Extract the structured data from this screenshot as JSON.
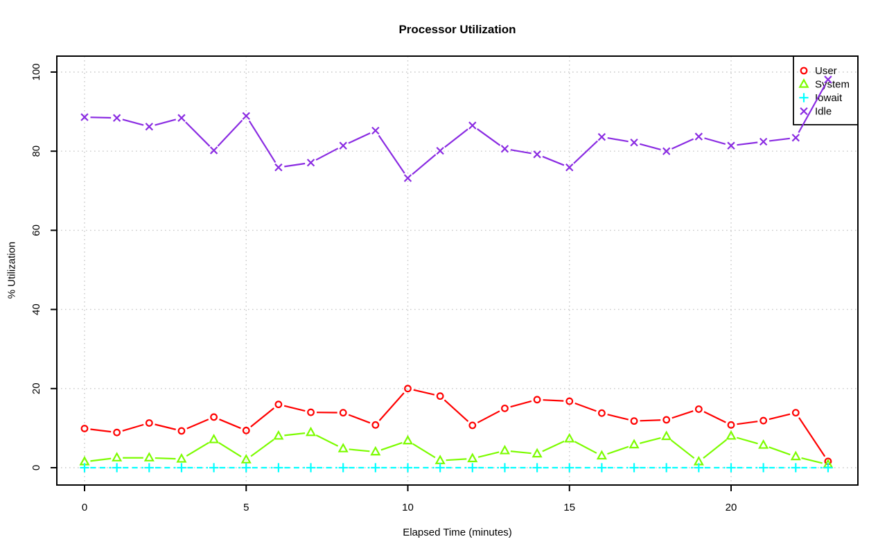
{
  "title": "Processor Utilization",
  "chart_data": {
    "type": "line",
    "title": "Processor Utilization",
    "xlabel": "Elapsed Time (minutes)",
    "ylabel": "% Utilization",
    "x": [
      0,
      1,
      2,
      3,
      4,
      5,
      6,
      7,
      8,
      9,
      10,
      11,
      12,
      13,
      14,
      15,
      16,
      17,
      18,
      19,
      20,
      21,
      22,
      23
    ],
    "x_ticks": [
      0,
      5,
      10,
      15,
      20
    ],
    "y_ticks": [
      0,
      20,
      40,
      60,
      80,
      100
    ],
    "xlim": [
      -0.9,
      23.9
    ],
    "ylim": [
      -4,
      104
    ],
    "grid": true,
    "grid_style": "dotted",
    "legend_position": "top-right",
    "series": [
      {
        "name": "User",
        "color": "#ff0000",
        "marker": "circle",
        "line_style": "solid",
        "values": [
          9.9,
          8.9,
          11.3,
          9.3,
          12.8,
          9.4,
          16.0,
          14.0,
          13.9,
          10.8,
          20.0,
          18.1,
          10.7,
          15.0,
          17.2,
          16.8,
          13.8,
          11.8,
          12.1,
          14.8,
          10.8,
          11.9,
          13.9,
          1.6
        ]
      },
      {
        "name": "System",
        "color": "#7cfc00",
        "marker": "triangle",
        "line_style": "solid",
        "values": [
          1.5,
          2.5,
          2.5,
          2.2,
          7.1,
          2.0,
          8.0,
          8.9,
          4.8,
          4.0,
          6.8,
          1.8,
          2.3,
          4.3,
          3.5,
          7.3,
          3.0,
          5.8,
          7.9,
          1.5,
          8.0,
          5.7,
          2.8,
          0.8
        ]
      },
      {
        "name": "Iowait",
        "color": "#00ffff",
        "marker": "plus",
        "line_style": "dashed",
        "values": [
          0,
          0,
          0,
          0,
          0,
          0,
          0,
          0,
          0,
          0,
          0,
          0,
          0,
          0,
          0,
          0,
          0,
          0,
          0,
          0,
          0,
          0,
          0,
          0
        ]
      },
      {
        "name": "Idle",
        "color": "#8a2be2",
        "marker": "x",
        "line_style": "solid",
        "values": [
          88.6,
          88.4,
          86.2,
          88.4,
          80.2,
          88.9,
          75.9,
          77.1,
          81.4,
          85.2,
          73.2,
          80.1,
          86.5,
          80.6,
          79.2,
          75.9,
          83.6,
          82.2,
          80.0,
          83.7,
          81.4,
          82.4,
          83.4,
          98.1
        ]
      }
    ],
    "colors": {
      "axis": "#000000",
      "grid": "#c9c9c9",
      "background": "#ffffff"
    }
  }
}
